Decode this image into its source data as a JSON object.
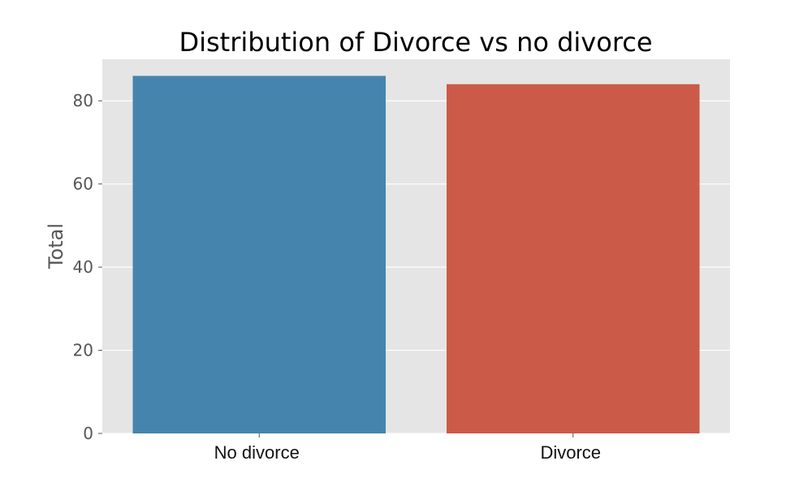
{
  "chart_data": {
    "type": "bar",
    "title": "Distribution of Divorce vs no divorce",
    "xlabel": "",
    "ylabel": "Total",
    "categories": [
      "No divorce",
      "Divorce"
    ],
    "values": [
      86,
      84
    ],
    "ylim": [
      0,
      90
    ],
    "yticks": [
      0,
      20,
      40,
      60,
      80
    ],
    "ytick_labels": [
      "0",
      "20",
      "40",
      "60",
      "80"
    ],
    "bar_colors": [
      "#4585ad",
      "#cb5b48"
    ],
    "background_color": "#e5e5e5",
    "grid": true,
    "grid_color": "#ffffff",
    "legend": "none"
  }
}
